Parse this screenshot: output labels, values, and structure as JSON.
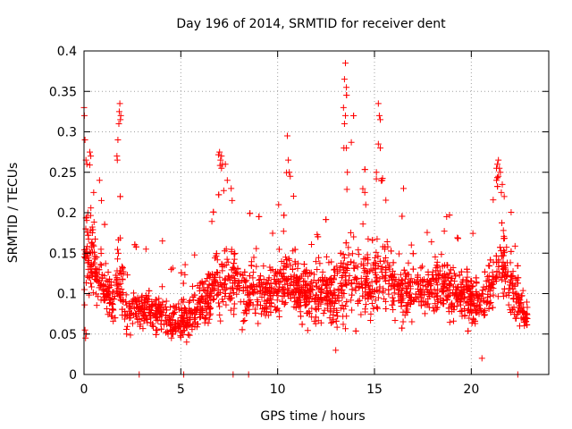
{
  "chart_data": {
    "type": "scatter",
    "title": "Day 196 of 2014, SRMTID for receiver dent",
    "xlabel": "GPS time / hours",
    "ylabel": "SRMTID / TECUs",
    "xlim": [
      0,
      24
    ],
    "ylim": [
      0,
      0.4
    ],
    "xticks": [
      0,
      5,
      10,
      15,
      20
    ],
    "xtick_labels": [
      "0",
      "5",
      "10",
      "15",
      "20"
    ],
    "yticks": [
      0,
      0.05,
      0.1,
      0.15,
      0.2,
      0.25,
      0.3,
      0.35,
      0.4
    ],
    "ytick_labels": [
      "0",
      "0.05",
      "0.1",
      "0.15",
      "0.2",
      "0.25",
      "0.3",
      "0.35",
      "0.4"
    ],
    "grid": true,
    "marker": "plus",
    "color": "#ff0000",
    "series": [
      {
        "name": "SRMTID",
        "profile_x": [
          0,
          0.1,
          0.3,
          0.6,
          1.0,
          1.5,
          1.8,
          2.2,
          2.8,
          3.5,
          4.2,
          4.8,
          5.3,
          6.0,
          6.8,
          7.2,
          7.8,
          8.5,
          9.3,
          10.0,
          10.6,
          11.3,
          12.0,
          12.8,
          13.4,
          13.7,
          14.2,
          14.8,
          15.2,
          15.6,
          16.3,
          17.0,
          17.8,
          18.5,
          19.2,
          20.0,
          20.8,
          21.4,
          21.7,
          22.2,
          22.8
        ],
        "profile_mean": [
          0.12,
          0.16,
          0.15,
          0.13,
          0.11,
          0.09,
          0.12,
          0.08,
          0.08,
          0.08,
          0.07,
          0.065,
          0.07,
          0.085,
          0.11,
          0.12,
          0.11,
          0.1,
          0.1,
          0.11,
          0.115,
          0.1,
          0.1,
          0.1,
          0.12,
          0.13,
          0.12,
          0.11,
          0.13,
          0.12,
          0.1,
          0.1,
          0.11,
          0.11,
          0.1,
          0.09,
          0.1,
          0.13,
          0.14,
          0.1,
          0.07
        ],
        "profile_spread": [
          0.05,
          0.07,
          0.06,
          0.05,
          0.04,
          0.03,
          0.06,
          0.03,
          0.03,
          0.03,
          0.03,
          0.025,
          0.03,
          0.03,
          0.05,
          0.05,
          0.045,
          0.04,
          0.04,
          0.045,
          0.05,
          0.04,
          0.04,
          0.045,
          0.06,
          0.07,
          0.05,
          0.05,
          0.06,
          0.055,
          0.04,
          0.04,
          0.04,
          0.04,
          0.04,
          0.035,
          0.04,
          0.06,
          0.06,
          0.04,
          0.02
        ],
        "profile_max": [
          0.33,
          0.3,
          0.27,
          0.24,
          0.2,
          0.15,
          0.335,
          0.15,
          0.17,
          0.15,
          0.165,
          0.12,
          0.14,
          0.17,
          0.28,
          0.26,
          0.22,
          0.2,
          0.21,
          0.22,
          0.295,
          0.2,
          0.2,
          0.2,
          0.385,
          0.36,
          0.3,
          0.25,
          0.335,
          0.25,
          0.2,
          0.2,
          0.2,
          0.2,
          0.2,
          0.18,
          0.2,
          0.26,
          0.265,
          0.2,
          0.1
        ],
        "points": [
          [
            0.0,
            0.33
          ],
          [
            0.02,
            0.32
          ],
          [
            0.05,
            0.29
          ],
          [
            0.1,
            0.265
          ],
          [
            0.15,
            0.26
          ],
          [
            0.3,
            0.275
          ],
          [
            0.35,
            0.27
          ],
          [
            0.05,
            0.055
          ],
          [
            0.08,
            0.045
          ],
          [
            0.12,
            0.05
          ],
          [
            0.2,
            0.2
          ],
          [
            0.5,
            0.225
          ],
          [
            0.8,
            0.24
          ],
          [
            0.9,
            0.215
          ],
          [
            1.7,
            0.27
          ],
          [
            1.72,
            0.265
          ],
          [
            1.75,
            0.29
          ],
          [
            1.8,
            0.31
          ],
          [
            1.82,
            0.325
          ],
          [
            1.85,
            0.335
          ],
          [
            1.9,
            0.32
          ],
          [
            1.88,
            0.315
          ],
          [
            2.85,
            0.0
          ],
          [
            5.15,
            0.0
          ],
          [
            7.7,
            0.0
          ],
          [
            8.5,
            0.0
          ],
          [
            22.4,
            0.0
          ],
          [
            4.05,
            0.165
          ],
          [
            3.2,
            0.155
          ],
          [
            4.5,
            0.13
          ],
          [
            7.0,
            0.275
          ],
          [
            7.05,
            0.265
          ],
          [
            7.1,
            0.27
          ],
          [
            7.15,
            0.26
          ],
          [
            7.1,
            0.255
          ],
          [
            7.3,
            0.26
          ],
          [
            7.6,
            0.23
          ],
          [
            7.65,
            0.215
          ],
          [
            7.4,
            0.24
          ],
          [
            10.05,
            0.21
          ],
          [
            10.5,
            0.295
          ],
          [
            10.55,
            0.265
          ],
          [
            10.6,
            0.25
          ],
          [
            10.65,
            0.245
          ],
          [
            13.5,
            0.385
          ],
          [
            13.45,
            0.365
          ],
          [
            13.55,
            0.355
          ],
          [
            13.4,
            0.33
          ],
          [
            13.5,
            0.32
          ],
          [
            13.45,
            0.31
          ],
          [
            13.55,
            0.28
          ],
          [
            13.42,
            0.28
          ],
          [
            13.6,
            0.25
          ],
          [
            15.2,
            0.335
          ],
          [
            15.25,
            0.32
          ],
          [
            15.3,
            0.315
          ],
          [
            15.2,
            0.285
          ],
          [
            15.3,
            0.28
          ],
          [
            15.1,
            0.25
          ],
          [
            15.4,
            0.24
          ],
          [
            16.5,
            0.23
          ],
          [
            14.5,
            0.225
          ],
          [
            14.55,
            0.21
          ],
          [
            21.3,
            0.255
          ],
          [
            21.35,
            0.26
          ],
          [
            21.4,
            0.265
          ],
          [
            21.45,
            0.255
          ],
          [
            21.5,
            0.25
          ],
          [
            21.4,
            0.245
          ],
          [
            21.3,
            0.24
          ],
          [
            21.6,
            0.235
          ],
          [
            20.55,
            0.02
          ],
          [
            21.55,
            0.225
          ],
          [
            21.7,
            0.22
          ],
          [
            0.3,
            0.12
          ],
          [
            0.6,
            0.13
          ],
          [
            1.0,
            0.11
          ],
          [
            1.2,
            0.1
          ],
          [
            2.0,
            0.09
          ],
          [
            2.2,
            0.05
          ],
          [
            2.4,
            0.07
          ],
          [
            3.0,
            0.08
          ],
          [
            3.5,
            0.09
          ],
          [
            4.3,
            0.07
          ],
          [
            4.6,
            0.05
          ],
          [
            4.9,
            0.06
          ],
          [
            5.3,
            0.04
          ],
          [
            5.6,
            0.075
          ],
          [
            6.0,
            0.09
          ],
          [
            6.5,
            0.12
          ],
          [
            8.0,
            0.11
          ],
          [
            8.8,
            0.105
          ],
          [
            9.6,
            0.1
          ],
          [
            11.0,
            0.12
          ],
          [
            11.5,
            0.09
          ],
          [
            12.0,
            0.08
          ],
          [
            12.5,
            0.1
          ],
          [
            13.0,
            0.03
          ],
          [
            14.0,
            0.12
          ],
          [
            14.8,
            0.1
          ],
          [
            16.0,
            0.12
          ],
          [
            17.0,
            0.09
          ],
          [
            17.5,
            0.11
          ],
          [
            18.0,
            0.1
          ],
          [
            18.5,
            0.12
          ],
          [
            19.0,
            0.085
          ],
          [
            19.5,
            0.1
          ],
          [
            20.0,
            0.09
          ],
          [
            20.4,
            0.075
          ],
          [
            21.0,
            0.11
          ],
          [
            22.0,
            0.08
          ],
          [
            22.5,
            0.06
          ],
          [
            22.8,
            0.065
          ]
        ]
      }
    ]
  }
}
